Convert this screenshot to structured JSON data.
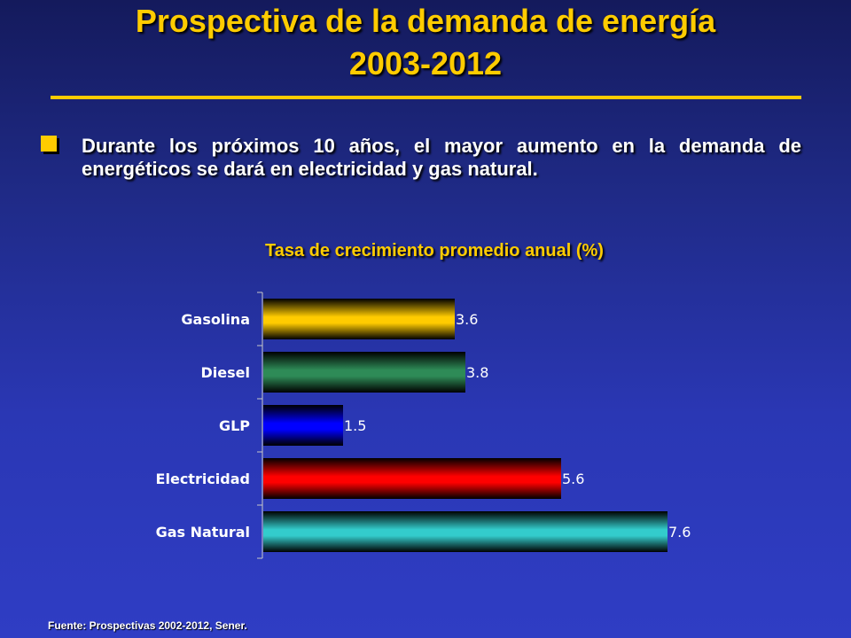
{
  "slide": {
    "title_line1": "Prospectiva de la demanda de energía",
    "title_line2": "2003-2012",
    "bullet": "Durante los próximos 10 años, el mayor aumento en la demanda de energéticos se dará en electricidad y gas natural.",
    "source": "Fuente: Prospectivas 2002-2012, Sener."
  },
  "colors": {
    "title": "#ffcc00",
    "text": "#ffffff",
    "background": "#2a37b4"
  },
  "chart_data": {
    "type": "bar",
    "orientation": "horizontal",
    "title": "Tasa de crecimiento promedio anual (%)",
    "categories": [
      "Gasolina",
      "Diesel",
      "GLP",
      "Electricidad",
      "Gas Natural"
    ],
    "values": [
      3.6,
      3.8,
      1.5,
      5.6,
      7.6
    ],
    "value_labels": [
      "3.6",
      "3.8",
      "1.5",
      "5.6",
      "7.6"
    ],
    "bar_colors": [
      "#ffcc00",
      "#2e8b57",
      "#0000ff",
      "#ff0000",
      "#33cccc"
    ],
    "xlim": [
      0,
      7.6
    ],
    "grid": false,
    "legend": "none"
  }
}
